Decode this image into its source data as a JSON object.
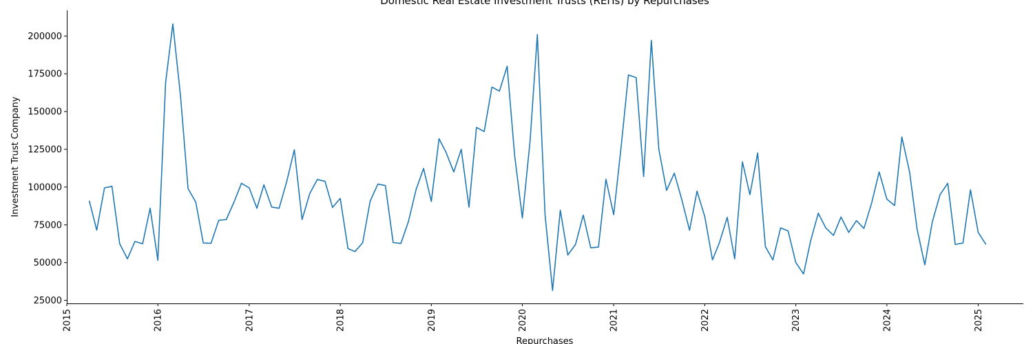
{
  "chart_data": {
    "type": "line",
    "title": "Domestic Real Estate Investment Trusts (REITs) by Repurchases",
    "xlabel": "Repurchases",
    "ylabel": "Investment Trust Company",
    "xlim": [
      "2015-01-01",
      "2025-07-01"
    ],
    "ylim": [
      23000,
      217000
    ],
    "x_ticks": [
      "2015",
      "2016",
      "2017",
      "2018",
      "2019",
      "2020",
      "2021",
      "2022",
      "2023",
      "2024",
      "2025"
    ],
    "y_ticks": [
      25000,
      50000,
      75000,
      100000,
      125000,
      150000,
      175000,
      200000
    ],
    "grid": false,
    "line_color": "#1f77b4",
    "series": [
      {
        "x": [
          "2015-04",
          "2015-05",
          "2015-06",
          "2015-07",
          "2015-08",
          "2015-09",
          "2015-10",
          "2015-11",
          "2015-12",
          "2016-01",
          "2016-02",
          "2016-03",
          "2016-04",
          "2016-05",
          "2016-06",
          "2016-07",
          "2016-08",
          "2016-09",
          "2016-10",
          "2016-11",
          "2016-12",
          "2017-01",
          "2017-02",
          "2017-03",
          "2017-04",
          "2017-05",
          "2017-06",
          "2017-07",
          "2017-08",
          "2017-09",
          "2017-10",
          "2017-11",
          "2017-12",
          "2018-01",
          "2018-02",
          "2018-03",
          "2018-04",
          "2018-05",
          "2018-06",
          "2018-07",
          "2018-08",
          "2018-09",
          "2018-10",
          "2018-11",
          "2018-12",
          "2019-01",
          "2019-02",
          "2019-03",
          "2019-04",
          "2019-05",
          "2019-06",
          "2019-07",
          "2019-08",
          "2019-09",
          "2019-10",
          "2019-11",
          "2019-12",
          "2020-01",
          "2020-02",
          "2020-03",
          "2020-04",
          "2020-05",
          "2020-06",
          "2020-07",
          "2020-08",
          "2020-09",
          "2020-10",
          "2020-11",
          "2020-12",
          "2021-01",
          "2021-02",
          "2021-03",
          "2021-04",
          "2021-05",
          "2021-06",
          "2021-07",
          "2021-08",
          "2021-09",
          "2021-10",
          "2021-11",
          "2021-12",
          "2022-01",
          "2022-02",
          "2022-03",
          "2022-04",
          "2022-05",
          "2022-06",
          "2022-07",
          "2022-08",
          "2022-09",
          "2022-10",
          "2022-11",
          "2022-12",
          "2023-01",
          "2023-02",
          "2023-03",
          "2023-04",
          "2023-05",
          "2023-06",
          "2023-07",
          "2023-08",
          "2023-09",
          "2023-10",
          "2023-11",
          "2023-12",
          "2024-01",
          "2024-02",
          "2024-03",
          "2024-04",
          "2024-05",
          "2024-06",
          "2024-07",
          "2024-08",
          "2024-09",
          "2024-10",
          "2024-11",
          "2024-12",
          "2025-01",
          "2025-02"
        ],
        "values": [
          91000,
          71500,
          99500,
          100500,
          62500,
          52500,
          64000,
          62500,
          86000,
          51500,
          169000,
          208000,
          160000,
          99000,
          90000,
          63000,
          62800,
          78000,
          78500,
          90000,
          102500,
          99500,
          86000,
          101500,
          86800,
          86000,
          104000,
          124700,
          78500,
          95800,
          105000,
          103800,
          86500,
          92500,
          59300,
          57300,
          63200,
          90800,
          102000,
          101000,
          63300,
          62700,
          77000,
          98400,
          112300,
          90500,
          132000,
          123000,
          110000,
          125000,
          86700,
          139500,
          136800,
          166200,
          163500,
          180000,
          121000,
          79500,
          130800,
          201000,
          81500,
          31500,
          84700,
          55000,
          62000,
          81500,
          59800,
          60300,
          105200,
          81700,
          128500,
          174200,
          172500,
          107000,
          197100,
          125000,
          97800,
          109200,
          91700,
          71400,
          97300,
          80500,
          51800,
          63300,
          80000,
          52500,
          116700,
          95000,
          122600,
          60600,
          51800,
          73000,
          71000,
          50000,
          42500,
          64200,
          82700,
          73000,
          68000,
          80200,
          70000,
          77800,
          72600,
          89500,
          110000,
          92000,
          87800,
          133200,
          110000,
          72200,
          48500,
          76900,
          95000,
          102500,
          62000,
          63000,
          98200,
          70000,
          62000
        ]
      }
    ]
  }
}
